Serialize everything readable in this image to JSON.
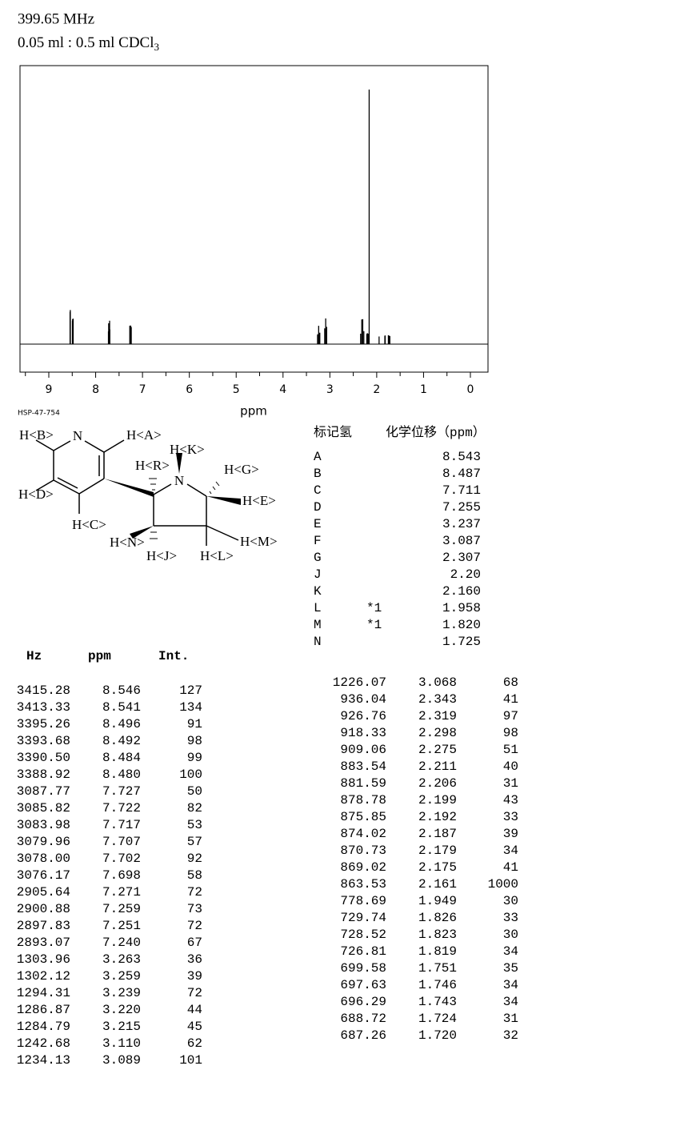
{
  "header": {
    "frequency": "399.65 MHz",
    "sample": "0.05 ml : 0.5 ml CDCl",
    "sample_sub": "3"
  },
  "chart_data": {
    "type": "stick",
    "xlabel": "ppm",
    "xlim": [
      9.615,
      -0.376
    ],
    "ylim": [
      -110,
      1094
    ],
    "xticks": [
      9,
      8,
      7,
      6,
      5,
      4,
      3,
      2,
      1,
      0
    ],
    "xminorticks": [
      9.5,
      8.5,
      7.5,
      6.5,
      5.5,
      4.5,
      3.5,
      2.5,
      1.5,
      0.5
    ],
    "color": "#000000"
  },
  "structure": {
    "code": "HSP-47-754",
    "atoms": [
      "N",
      "N"
    ],
    "labels": [
      "H<B>",
      "H<A>",
      "H<D>",
      "H<C>",
      "H<R>",
      "H<K>",
      "H<G>",
      "H<E>",
      "H<N>",
      "H<J>",
      "H<L>",
      "H<M>"
    ]
  },
  "assignments": {
    "columns": [
      "标记氢",
      "化学位移（ppm）"
    ],
    "rows": [
      [
        "A",
        "",
        "8.543"
      ],
      [
        "B",
        "",
        "8.487"
      ],
      [
        "C",
        "",
        "7.711"
      ],
      [
        "D",
        "",
        "7.255"
      ],
      [
        "E",
        "",
        "3.237"
      ],
      [
        "F",
        "",
        "3.087"
      ],
      [
        "G",
        "",
        "2.307"
      ],
      [
        "J",
        "",
        "2.20"
      ],
      [
        "K",
        "",
        "2.160"
      ],
      [
        "L",
        "*1",
        "1.958"
      ],
      [
        "M",
        "*1",
        "1.820"
      ],
      [
        "N",
        "",
        "1.725"
      ]
    ]
  },
  "peak_table": {
    "columns": [
      "Hz",
      "ppm",
      "Int."
    ],
    "rows": [
      [
        "3415.28",
        "8.546",
        "127"
      ],
      [
        "3413.33",
        "8.541",
        "134"
      ],
      [
        "3395.26",
        "8.496",
        "91"
      ],
      [
        "3393.68",
        "8.492",
        "98"
      ],
      [
        "3390.50",
        "8.484",
        "99"
      ],
      [
        "3388.92",
        "8.480",
        "100"
      ],
      [
        "3087.77",
        "7.727",
        "50"
      ],
      [
        "3085.82",
        "7.722",
        "82"
      ],
      [
        "3083.98",
        "7.717",
        "53"
      ],
      [
        "3079.96",
        "7.707",
        "57"
      ],
      [
        "3078.00",
        "7.702",
        "92"
      ],
      [
        "3076.17",
        "7.698",
        "58"
      ],
      [
        "2905.64",
        "7.271",
        "72"
      ],
      [
        "2900.88",
        "7.259",
        "73"
      ],
      [
        "2897.83",
        "7.251",
        "72"
      ],
      [
        "2893.07",
        "7.240",
        "67"
      ],
      [
        "1303.96",
        "3.263",
        "36"
      ],
      [
        "1302.12",
        "3.259",
        "39"
      ],
      [
        "1294.31",
        "3.239",
        "72"
      ],
      [
        "1286.87",
        "3.220",
        "44"
      ],
      [
        "1284.79",
        "3.215",
        "45"
      ],
      [
        "1242.68",
        "3.110",
        "62"
      ],
      [
        "1234.13",
        "3.089",
        "101"
      ],
      [
        "1226.07",
        "3.068",
        "68"
      ],
      [
        "936.04",
        "2.343",
        "41"
      ],
      [
        "926.76",
        "2.319",
        "97"
      ],
      [
        "918.33",
        "2.298",
        "98"
      ],
      [
        "909.06",
        "2.275",
        "51"
      ],
      [
        "883.54",
        "2.211",
        "40"
      ],
      [
        "881.59",
        "2.206",
        "31"
      ],
      [
        "878.78",
        "2.199",
        "43"
      ],
      [
        "875.85",
        "2.192",
        "33"
      ],
      [
        "874.02",
        "2.187",
        "39"
      ],
      [
        "870.73",
        "2.179",
        "34"
      ],
      [
        "869.02",
        "2.175",
        "41"
      ],
      [
        "863.53",
        "2.161",
        "1000"
      ],
      [
        "778.69",
        "1.949",
        "30"
      ],
      [
        "729.74",
        "1.826",
        "33"
      ],
      [
        "728.52",
        "1.823",
        "30"
      ],
      [
        "726.81",
        "1.819",
        "34"
      ],
      [
        "699.58",
        "1.751",
        "35"
      ],
      [
        "697.63",
        "1.746",
        "34"
      ],
      [
        "696.29",
        "1.743",
        "34"
      ],
      [
        "688.72",
        "1.724",
        "31"
      ],
      [
        "687.26",
        "1.720",
        "32"
      ]
    ]
  }
}
